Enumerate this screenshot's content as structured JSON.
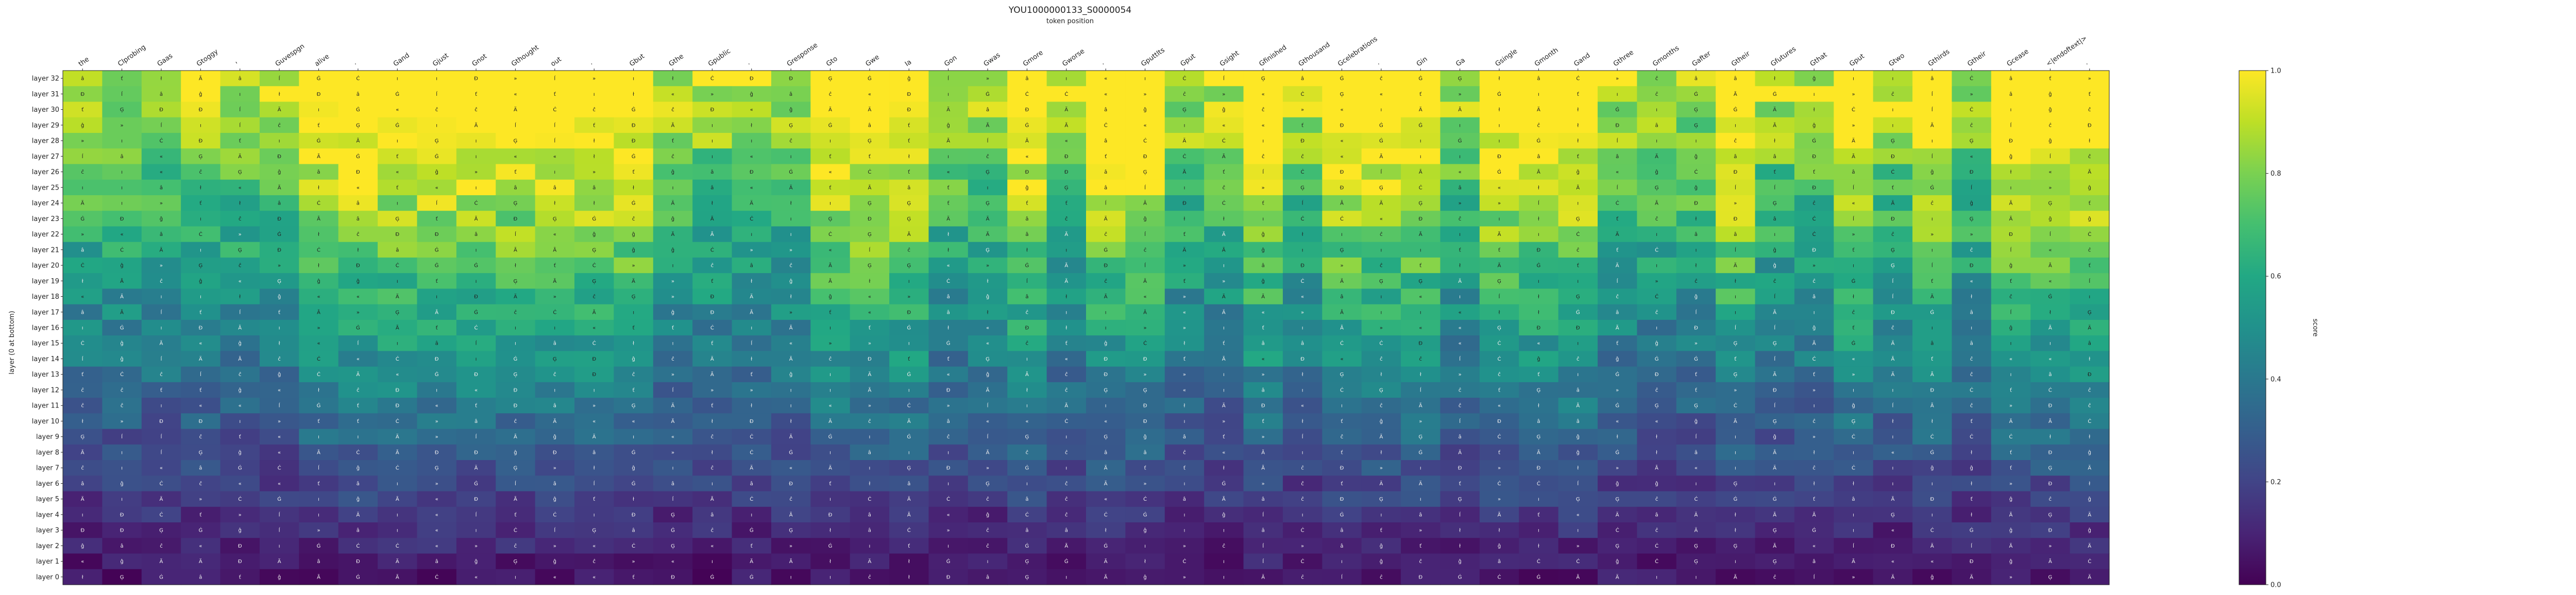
{
  "chart_data": {
    "type": "heatmap",
    "title": "YOU1000000133_S0000054",
    "subtitle": "token position",
    "ylabel": "layer (0 at bottom)",
    "colorbar_label": "score",
    "colormap": "viridis",
    "vmin": 0.0,
    "vmax": 1.0,
    "colorbar_ticks": [
      "0.0",
      "0.2",
      "0.4",
      "0.6",
      "0.8",
      "1.0"
    ],
    "x_labels": [
      "the",
      "Clprobing",
      "Gaas",
      "Gtoggy",
      "'",
      "Guvespgn",
      "alive",
      "·",
      "Gand",
      "Gjust",
      "Gnot",
      "Gthought",
      "out",
      "·",
      "Gbut",
      "Gthe",
      "Gpublic",
      "·",
      "Gresponse",
      "Gto",
      "Gwe",
      "Ia",
      "Gon",
      "Gwas",
      "Gmore",
      "Gworse",
      "·",
      "Gputtlts",
      "Gput",
      "Gsight",
      "Gfinished",
      "Gthousand",
      "Gcelebrations",
      "·",
      "Gin",
      "Ga",
      "Gsingle",
      "Gmonth",
      "Gand",
      "Gthree",
      "Gmonths",
      "Gafter",
      "Gtheir",
      "Gfutures",
      "Gthat",
      "Gput",
      "Gtwo",
      "Gthirds",
      "Gtheir",
      "Gcease",
      "<|endoftext|>",
      "·"
    ],
    "y_labels": [
      "layer 32",
      "layer 31",
      "layer 30",
      "layer 29",
      "layer 28",
      "layer 27",
      "layer 26",
      "layer 25",
      "layer 24",
      "layer 23",
      "layer 22",
      "layer 21",
      "layer 20",
      "layer 19",
      "layer 18",
      "layer 17",
      "layer 16",
      "layer 15",
      "layer 14",
      "layer 13",
      "layer 12",
      "layer 11",
      "layer 10",
      "layer 9",
      "layer 8",
      "layer 7",
      "layer 6",
      "layer 5",
      "layer 4",
      "layer 3",
      "layer 2",
      "layer 1",
      "layer 0"
    ],
    "glyphs": [
      "Ä",
      "ı",
      "«",
      "Ġ",
      "»",
      "ĺ",
      "ł",
      "Ã",
      "Ċ",
      "â",
      "ĉ",
      "Ģ",
      "ť",
      "ı",
      "Ð",
      "ĝ"
    ]
  }
}
